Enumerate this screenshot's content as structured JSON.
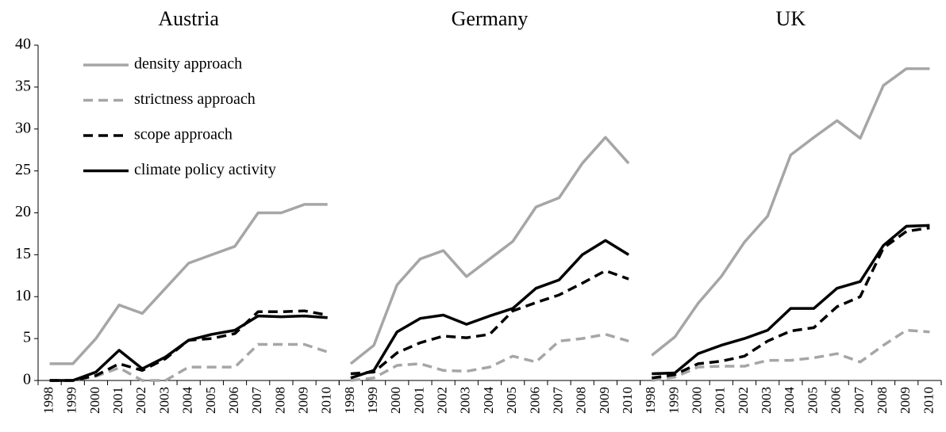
{
  "chart_data": [
    {
      "type": "line",
      "title": "Austria",
      "categories": [
        "1998",
        "1999",
        "2000",
        "2001",
        "2002",
        "2003",
        "2004",
        "2005",
        "2006",
        "2007",
        "2008",
        "2009",
        "2010"
      ],
      "ylim": [
        0,
        40
      ],
      "yticks": [
        0,
        5,
        10,
        15,
        20,
        25,
        30,
        35,
        40
      ],
      "series": [
        {
          "name": "density approach",
          "color": "#a6a6a6",
          "dashed": false,
          "values": [
            2,
            2,
            5,
            9,
            8,
            11,
            14,
            15,
            16,
            20,
            20,
            21,
            21
          ]
        },
        {
          "name": "strictness approach",
          "color": "#a6a6a6",
          "dashed": true,
          "values": [
            0,
            0,
            0.5,
            1.5,
            0,
            0,
            1.6,
            1.6,
            1.6,
            4.3,
            4.3,
            4.3,
            3.4
          ]
        },
        {
          "name": "scope approach",
          "color": "#000000",
          "dashed": true,
          "values": [
            0,
            0,
            0.6,
            2,
            1.2,
            2.6,
            4.8,
            5,
            5.6,
            8.2,
            8.2,
            8.3,
            7.8
          ]
        },
        {
          "name": "climate policy activity",
          "color": "#000000",
          "dashed": false,
          "values": [
            0,
            0,
            1,
            3.6,
            1.4,
            2.8,
            4.8,
            5.5,
            6,
            7.7,
            7.6,
            7.7,
            7.5
          ]
        }
      ]
    },
    {
      "type": "line",
      "title": "Germany",
      "categories": [
        "1998",
        "1999",
        "2000",
        "2001",
        "2002",
        "2003",
        "2004",
        "2005",
        "2006",
        "2007",
        "2008",
        "2009",
        "2010"
      ],
      "ylim": [
        0,
        40
      ],
      "series": [
        {
          "values": [
            2,
            4.2,
            11.4,
            14.5,
            15.5,
            12.4,
            14.5,
            16.6,
            20.7,
            21.8,
            25.9,
            29,
            25.9
          ]
        },
        {
          "values": [
            0,
            0.3,
            1.8,
            2,
            1.2,
            1.1,
            1.6,
            2.9,
            2.2,
            4.7,
            5,
            5.5,
            4.7
          ]
        },
        {
          "values": [
            0.8,
            1,
            3.3,
            4.5,
            5.3,
            5.1,
            5.5,
            8.3,
            9.3,
            10.2,
            11.6,
            13.1,
            12.1
          ]
        },
        {
          "values": [
            0.3,
            1.2,
            5.8,
            7.4,
            7.8,
            6.7,
            7.7,
            8.6,
            11,
            12,
            15,
            16.7,
            15
          ]
        }
      ]
    },
    {
      "type": "line",
      "title": "UK",
      "categories": [
        "1998",
        "1999",
        "2000",
        "2001",
        "2002",
        "2003",
        "2004",
        "2005",
        "2006",
        "2007",
        "2008",
        "2009",
        "2010"
      ],
      "ylim": [
        0,
        40
      ],
      "series": [
        {
          "values": [
            3,
            5.2,
            9.2,
            12.4,
            16.5,
            19.6,
            26.9,
            29,
            31,
            28.9,
            35.2,
            37.2,
            37.2
          ]
        },
        {
          "values": [
            0,
            0.4,
            1.6,
            1.7,
            1.7,
            2.4,
            2.4,
            2.7,
            3.2,
            2.2,
            4.2,
            6,
            5.8
          ]
        },
        {
          "values": [
            0.3,
            0.7,
            2,
            2.3,
            2.9,
            4.7,
            5.9,
            6.3,
            8.8,
            10,
            15.8,
            17.8,
            18.2
          ]
        },
        {
          "values": [
            0.8,
            0.9,
            3.2,
            4.2,
            5,
            6,
            8.6,
            8.6,
            11,
            11.8,
            16.1,
            18.4,
            18.5
          ]
        }
      ]
    }
  ]
}
